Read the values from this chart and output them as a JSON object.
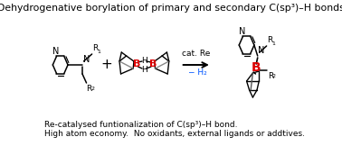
{
  "title": "Dehydrogenative borylation of primary and secondary C(sp³)–H bonds",
  "subtitle1": "Re-catalysed funtionalization of C(sp³)–H bond.",
  "subtitle2": "High atom economy.  No oxidants, external ligands or addtives.",
  "cat_re": "cat. Re",
  "minus_h2": "− H₂",
  "background_color": "#ffffff",
  "title_fontsize": 7.8,
  "body_fontsize": 6.5,
  "text_color": "#000000",
  "blue_color": "#0055ff",
  "red_color": "#dd0000"
}
